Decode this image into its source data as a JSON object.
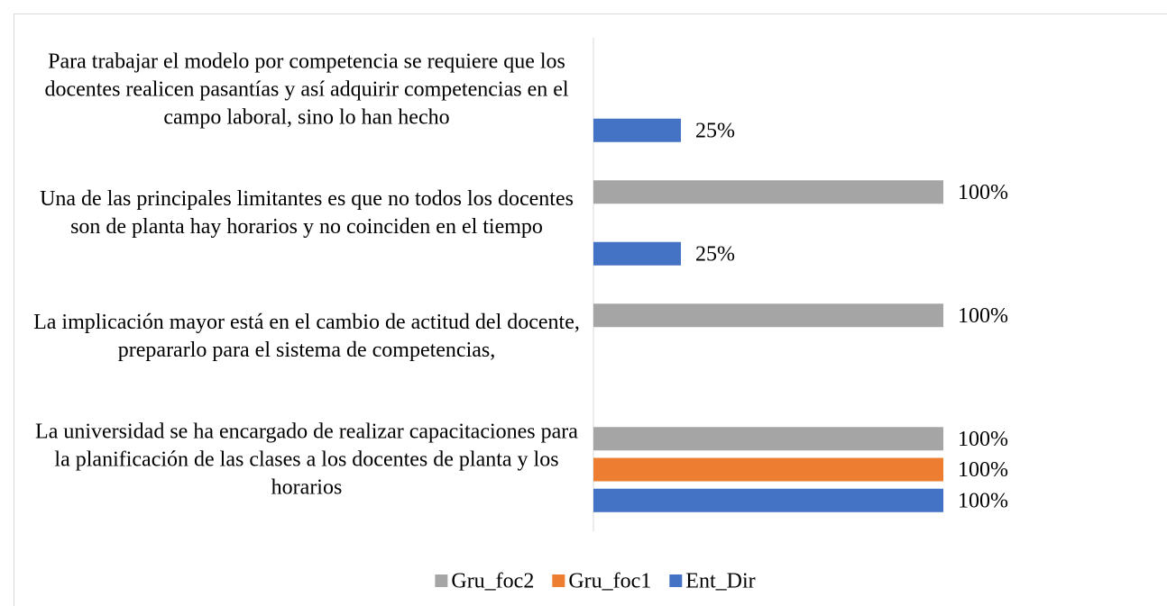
{
  "chart_data": {
    "type": "bar",
    "orientation": "horizontal",
    "categories": [
      "Para trabajar el modelo por competencia se requiere que los docentes realicen pasantías y así adquirir competencias en el campo laboral, sino lo han hecho",
      "Una de las principales limitantes es que no todos los docentes son de planta hay horarios y no coinciden en el tiempo",
      "La implicación mayor está en el cambio de actitud del docente, prepararlo para el sistema de competencias,",
      "La universidad se ha encargado de realizar capacitaciones para la planificación de las clases a los docentes de planta y los horarios"
    ],
    "series": [
      {
        "name": "Gru_foc2",
        "color": "#a5a5a5",
        "values": [
          null,
          100,
          100,
          100
        ],
        "value_labels": [
          null,
          "100%",
          "100%",
          "100%"
        ]
      },
      {
        "name": "Gru_foc1",
        "color": "#ed7d31",
        "values": [
          null,
          null,
          null,
          100
        ],
        "value_labels": [
          null,
          null,
          null,
          "100%"
        ]
      },
      {
        "name": "Ent_Dir",
        "color": "#4472c4",
        "values": [
          25,
          25,
          null,
          100
        ],
        "value_labels": [
          "25%",
          "25%",
          null,
          "100%"
        ]
      }
    ],
    "xlim": [
      0,
      100
    ],
    "legend": "bottom"
  }
}
